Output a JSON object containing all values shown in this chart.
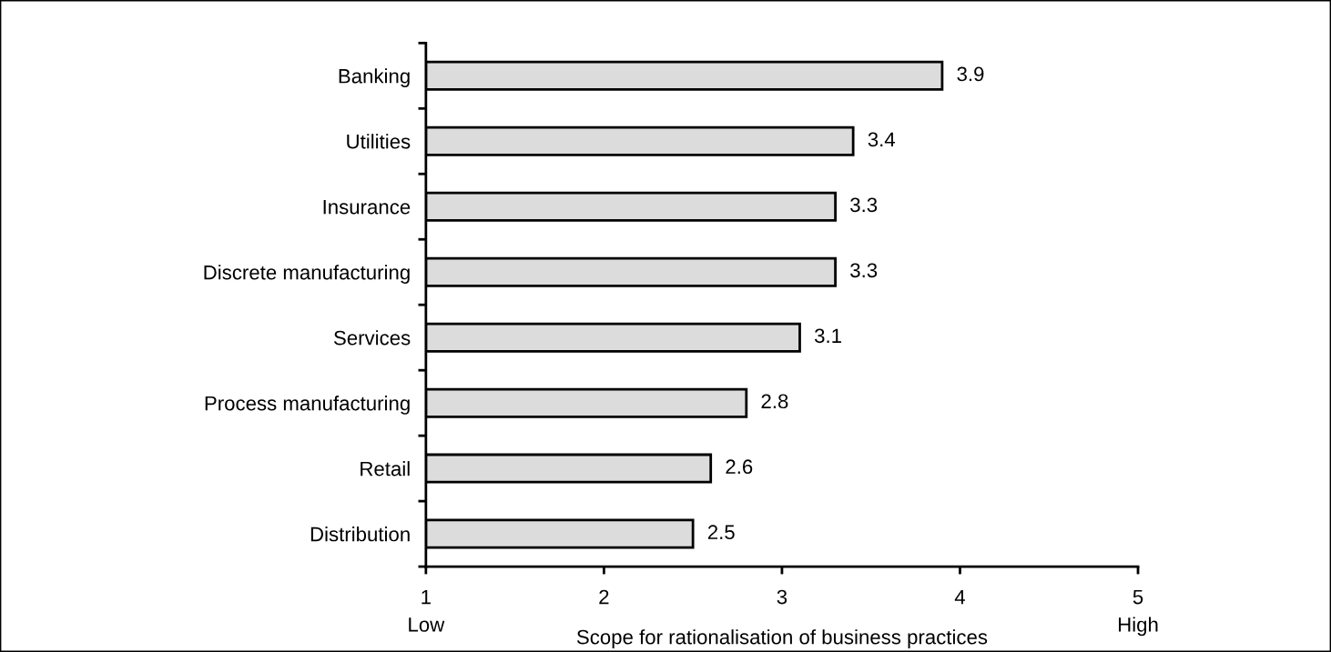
{
  "chart_data": {
    "type": "bar",
    "orientation": "horizontal",
    "categories": [
      "Banking",
      "Utilities",
      "Insurance",
      "Discrete manufacturing",
      "Services",
      "Process manufacturing",
      "Retail",
      "Distribution"
    ],
    "values": [
      3.9,
      3.4,
      3.3,
      3.3,
      3.1,
      2.8,
      2.6,
      2.5
    ],
    "color": "#dcdcdc",
    "xlim": [
      1,
      5
    ],
    "xticks": [
      {
        "value": 1,
        "label": "1\nLow"
      },
      2,
      3,
      4,
      {
        "value": 5,
        "label": "5\nHigh"
      }
    ],
    "xlabel": "Scope for rationalisation of business practices",
    "data_labels": true,
    "grid": false
  }
}
